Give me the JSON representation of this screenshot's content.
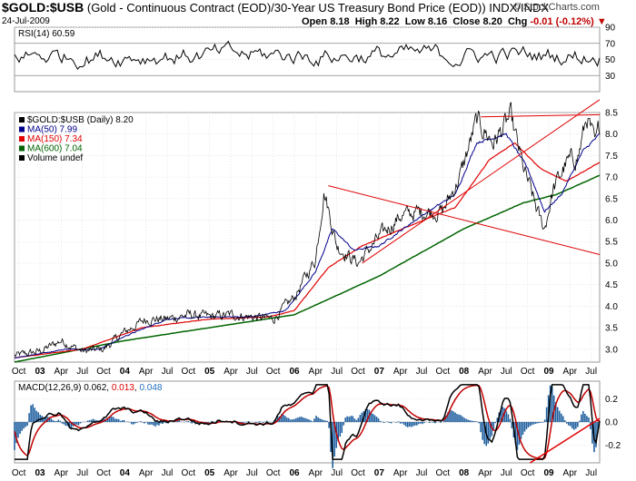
{
  "header": {
    "symbol": "$GOLD:$USB",
    "description": "(Gold - Continuous Contract (EOD)/30-Year US Treasury Bond Price (EOD))",
    "exchange": "INDX/INDX",
    "date": "24-Jul-2009",
    "credit": "© StockCharts.com",
    "open_label": "Open",
    "open": "8.18",
    "high_label": "High",
    "high": "8.22",
    "low_label": "Low",
    "low": "8.16",
    "close_label": "Close",
    "close": "8.20",
    "chg_label": "Chg",
    "chg": "-0.01 (-0.12%)"
  },
  "colors": {
    "price": "#000000",
    "ma50": "#00008b",
    "ma150": "#e00000",
    "ma600": "#006400",
    "trend": "#e00000",
    "hist": "#1f5f9f",
    "macd_signal_text": "#e00000",
    "hist_text": "#1f6fbf"
  },
  "chart_data": [
    {
      "type": "line",
      "panel": "RSI",
      "label": "RSI(14) 60.59",
      "ylim": [
        10,
        90
      ],
      "yticks": [
        30,
        50,
        70,
        90
      ],
      "guides": [
        30,
        70
      ],
      "samples": 260
    },
    {
      "type": "line",
      "panel": "price",
      "legend": [
        "$GOLD:$USB (Daily) 8.20",
        "MA(50) 7.99",
        "MA(150) 7.34",
        "MA(600) 7.04",
        "Volume undef"
      ],
      "ylim": [
        2.7,
        8.5
      ],
      "yticks": [
        3.0,
        3.5,
        4.0,
        4.5,
        5.0,
        5.5,
        6.0,
        6.5,
        7.0,
        7.5,
        8.0,
        8.5
      ],
      "x_start": 2002.7,
      "x_end": 2009.6,
      "price_anchors": [
        [
          2002.7,
          2.85
        ],
        [
          2003.0,
          2.95
        ],
        [
          2003.25,
          3.2
        ],
        [
          2003.5,
          2.95
        ],
        [
          2003.75,
          3.0
        ],
        [
          2004.0,
          3.4
        ],
        [
          2004.25,
          3.7
        ],
        [
          2004.5,
          3.7
        ],
        [
          2004.75,
          3.8
        ],
        [
          2005.0,
          3.75
        ],
        [
          2005.25,
          3.8
        ],
        [
          2005.5,
          3.75
        ],
        [
          2005.75,
          3.7
        ],
        [
          2006.0,
          4.2
        ],
        [
          2006.25,
          5.1
        ],
        [
          2006.35,
          6.7
        ],
        [
          2006.5,
          5.4
        ],
        [
          2006.75,
          5.0
        ],
        [
          2007.0,
          5.6
        ],
        [
          2007.25,
          6.1
        ],
        [
          2007.5,
          6.2
        ],
        [
          2007.75,
          6.2
        ],
        [
          2007.95,
          7.0
        ],
        [
          2008.15,
          8.3
        ],
        [
          2008.35,
          7.8
        ],
        [
          2008.55,
          8.4
        ],
        [
          2008.7,
          7.2
        ],
        [
          2008.9,
          6.0
        ],
        [
          2008.95,
          5.8
        ],
        [
          2009.05,
          6.7
        ],
        [
          2009.2,
          7.3
        ],
        [
          2009.35,
          7.5
        ],
        [
          2009.45,
          8.4
        ],
        [
          2009.55,
          7.7
        ],
        [
          2009.6,
          8.2
        ]
      ],
      "ma50_anchors": [
        [
          2002.7,
          2.8
        ],
        [
          2003.3,
          3.0
        ],
        [
          2003.7,
          3.0
        ],
        [
          2004.0,
          3.3
        ],
        [
          2004.5,
          3.7
        ],
        [
          2005.0,
          3.75
        ],
        [
          2005.5,
          3.75
        ],
        [
          2005.9,
          3.9
        ],
        [
          2006.25,
          4.8
        ],
        [
          2006.45,
          5.8
        ],
        [
          2006.7,
          5.3
        ],
        [
          2007.0,
          5.4
        ],
        [
          2007.5,
          6.1
        ],
        [
          2007.9,
          6.6
        ],
        [
          2008.15,
          7.8
        ],
        [
          2008.5,
          8.0
        ],
        [
          2008.75,
          7.2
        ],
        [
          2008.95,
          6.2
        ],
        [
          2009.15,
          6.6
        ],
        [
          2009.4,
          7.6
        ],
        [
          2009.6,
          7.99
        ]
      ],
      "ma150_anchors": [
        [
          2002.7,
          2.8
        ],
        [
          2003.5,
          3.0
        ],
        [
          2004.2,
          3.5
        ],
        [
          2005.0,
          3.7
        ],
        [
          2005.7,
          3.75
        ],
        [
          2006.0,
          3.9
        ],
        [
          2006.4,
          4.9
        ],
        [
          2006.8,
          5.4
        ],
        [
          2007.4,
          5.9
        ],
        [
          2007.9,
          6.3
        ],
        [
          2008.3,
          7.4
        ],
        [
          2008.6,
          7.8
        ],
        [
          2008.9,
          7.2
        ],
        [
          2009.2,
          6.9
        ],
        [
          2009.6,
          7.34
        ]
      ],
      "ma600_anchors": [
        [
          2002.7,
          2.7
        ],
        [
          2004.0,
          3.2
        ],
        [
          2005.0,
          3.5
        ],
        [
          2006.0,
          3.8
        ],
        [
          2007.0,
          4.7
        ],
        [
          2008.0,
          5.8
        ],
        [
          2008.7,
          6.4
        ],
        [
          2009.1,
          6.6
        ],
        [
          2009.6,
          7.04
        ]
      ],
      "trendlines": [
        [
          [
            2006.4,
            6.8
          ],
          [
            2009.6,
            5.2
          ]
        ],
        [
          [
            2006.8,
            5.0
          ],
          [
            2009.6,
            8.8
          ]
        ],
        [
          [
            2008.2,
            8.4
          ],
          [
            2009.6,
            8.45
          ]
        ]
      ]
    },
    {
      "type": "line",
      "panel": "MACD",
      "label_prefix": "MACD(12,26,9)",
      "macd": "0.062",
      "signal": "0.013",
      "hist": "0.048",
      "ylim": [
        -0.35,
        0.35
      ],
      "yticks": [
        "0.2",
        "0.0",
        "-0.2"
      ],
      "trendline": [
        [
          2008.78,
          -0.35
        ],
        [
          2009.6,
          0.03
        ]
      ]
    }
  ],
  "axis": {
    "x_labels": [
      [
        "Oct",
        2002.75
      ],
      [
        "03",
        2003.0
      ],
      [
        "Apr",
        2003.25
      ],
      [
        "Jul",
        2003.5
      ],
      [
        "Oct",
        2003.75
      ],
      [
        "04",
        2004.0
      ],
      [
        "Apr",
        2004.25
      ],
      [
        "Jul",
        2004.5
      ],
      [
        "Oct",
        2004.75
      ],
      [
        "05",
        2005.0
      ],
      [
        "Apr",
        2005.25
      ],
      [
        "Jul",
        2005.5
      ],
      [
        "Oct",
        2005.75
      ],
      [
        "06",
        2006.0
      ],
      [
        "Apr",
        2006.25
      ],
      [
        "Jul",
        2006.5
      ],
      [
        "Oct",
        2006.75
      ],
      [
        "07",
        2007.0
      ],
      [
        "Apr",
        2007.25
      ],
      [
        "Jul",
        2007.5
      ],
      [
        "Oct",
        2007.75
      ],
      [
        "08",
        2008.0
      ],
      [
        "Apr",
        2008.25
      ],
      [
        "Jul",
        2008.5
      ],
      [
        "Oct",
        2008.75
      ],
      [
        "09",
        2009.0
      ],
      [
        "Apr",
        2009.25
      ],
      [
        "Jul",
        2009.5
      ]
    ]
  }
}
